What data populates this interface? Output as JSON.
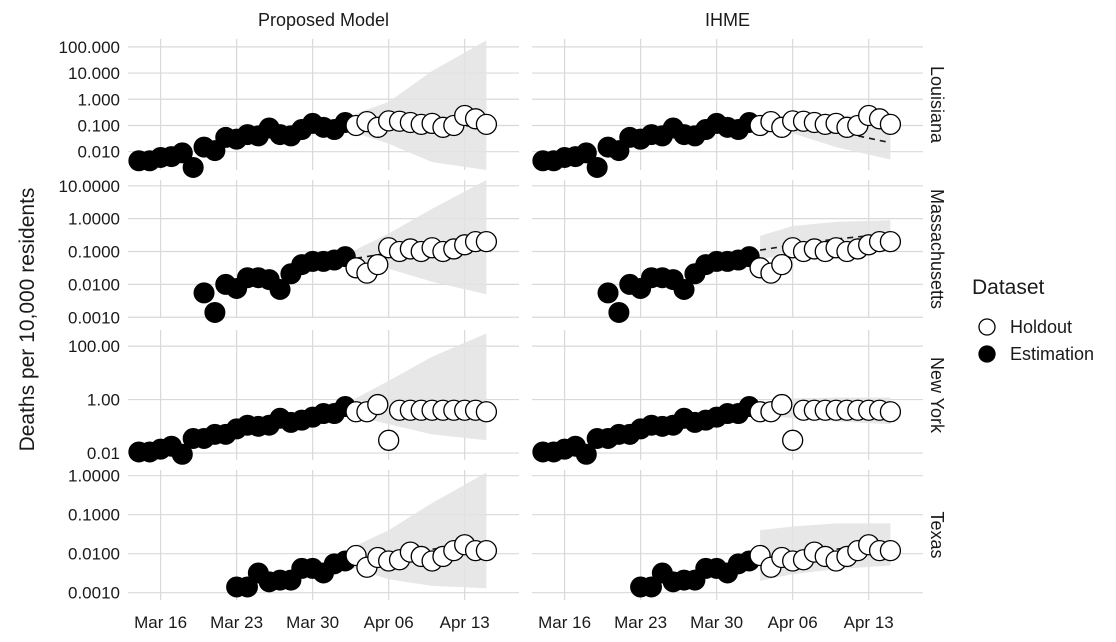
{
  "chart_data": {
    "type": "scatter",
    "ylabel": "Deaths per 10,000 residents",
    "xlabel": "",
    "x_tick_labels": [
      "Mar 16",
      "Mar 23",
      "Mar 30",
      "Apr 06",
      "Apr 13"
    ],
    "x_range": [
      "2020-03-13",
      "2020-04-18"
    ],
    "columns": [
      "Proposed Model",
      "IHME"
    ],
    "legend": {
      "title": "Dataset",
      "position": "right",
      "entries": [
        {
          "label": "Holdout",
          "marker": "open-circle"
        },
        {
          "label": "Estimation",
          "marker": "filled-circle"
        }
      ]
    },
    "y_scale": "log10",
    "grid": true,
    "colors": {
      "points": "#000000",
      "ribbon": "#e3e3e3",
      "grid": "#d9d9d9",
      "fit_line": "#1a1a1a"
    },
    "rows": [
      {
        "state": "Louisiana",
        "y_tick_labels": [
          "100.000",
          "10.000",
          "1.000",
          "0.100",
          "0.010"
        ],
        "y_tick_values": [
          100,
          10,
          1,
          0.1,
          0.01
        ],
        "ylim": [
          0.002,
          200
        ],
        "estimation": {
          "dates": [
            "2020-03-14",
            "2020-03-15",
            "2020-03-16",
            "2020-03-17",
            "2020-03-18",
            "2020-03-19",
            "2020-03-20",
            "2020-03-21",
            "2020-03-22",
            "2020-03-23",
            "2020-03-24",
            "2020-03-25",
            "2020-03-26",
            "2020-03-27",
            "2020-03-28",
            "2020-03-29",
            "2020-03-30",
            "2020-03-31",
            "2020-04-01",
            "2020-04-02"
          ],
          "values": [
            0.0045,
            0.0045,
            0.006,
            0.0065,
            0.009,
            0.0025,
            0.015,
            0.011,
            0.035,
            0.03,
            0.045,
            0.04,
            0.08,
            0.045,
            0.04,
            0.07,
            0.12,
            0.085,
            0.07,
            0.13
          ]
        },
        "holdout": {
          "dates": [
            "2020-04-03",
            "2020-04-04",
            "2020-04-05",
            "2020-04-06",
            "2020-04-07",
            "2020-04-08",
            "2020-04-09",
            "2020-04-10",
            "2020-04-11",
            "2020-04-12",
            "2020-04-13",
            "2020-04-14",
            "2020-04-15"
          ],
          "values": [
            0.1,
            0.14,
            0.085,
            0.15,
            0.145,
            0.13,
            0.11,
            0.12,
            0.085,
            0.1,
            0.24,
            0.18,
            0.11
          ]
        },
        "models": [
          {
            "name": "Proposed Model",
            "fit": {
              "dates": [
                "2020-04-02",
                "2020-04-06",
                "2020-04-10",
                "2020-04-15"
              ],
              "values": [
                0.12,
                0.12,
                0.11,
                0.09
              ]
            },
            "ribbon": {
              "dates": [
                "2020-04-02",
                "2020-04-06",
                "2020-04-10",
                "2020-04-15"
              ],
              "lower": [
                0.07,
                0.02,
                0.004,
                0.002
              ],
              "upper": [
                0.2,
                0.8,
                12,
                180
              ]
            }
          },
          {
            "name": "IHME",
            "fit": {
              "dates": [
                "2020-04-02",
                "2020-04-06",
                "2020-04-10",
                "2020-04-15"
              ],
              "values": [
                0.13,
                0.1,
                0.06,
                0.022
              ]
            },
            "ribbon": {
              "dates": [
                "2020-04-02",
                "2020-04-06",
                "2020-04-10",
                "2020-04-15"
              ],
              "lower": [
                0.1,
                0.05,
                0.015,
                0.005
              ],
              "upper": [
                0.16,
                0.2,
                0.22,
                0.3
              ]
            }
          }
        ]
      },
      {
        "state": "Massachusetts",
        "y_tick_labels": [
          "10.0000",
          "1.0000",
          "0.1000",
          "0.0100",
          "0.0010"
        ],
        "y_tick_values": [
          10,
          1,
          0.1,
          0.01,
          0.001
        ],
        "ylim": [
          0.00095,
          15
        ],
        "estimation": {
          "dates": [
            "2020-03-20",
            "2020-03-21",
            "2020-03-22",
            "2020-03-23",
            "2020-03-24",
            "2020-03-25",
            "2020-03-26",
            "2020-03-27",
            "2020-03-28",
            "2020-03-29",
            "2020-03-30",
            "2020-03-31",
            "2020-04-01",
            "2020-04-02"
          ],
          "values": [
            0.0055,
            0.0014,
            0.01,
            0.0075,
            0.016,
            0.016,
            0.014,
            0.007,
            0.021,
            0.04,
            0.05,
            0.05,
            0.055,
            0.07
          ]
        },
        "holdout": {
          "dates": [
            "2020-04-03",
            "2020-04-04",
            "2020-04-05",
            "2020-04-06",
            "2020-04-07",
            "2020-04-08",
            "2020-04-09",
            "2020-04-10",
            "2020-04-11",
            "2020-04-12",
            "2020-04-13",
            "2020-04-14",
            "2020-04-15"
          ],
          "values": [
            0.032,
            0.022,
            0.04,
            0.13,
            0.1,
            0.12,
            0.1,
            0.13,
            0.1,
            0.12,
            0.16,
            0.2,
            0.2
          ]
        },
        "models": [
          {
            "name": "Proposed Model",
            "fit": {
              "dates": [
                "2020-04-02",
                "2020-04-06",
                "2020-04-10",
                "2020-04-15"
              ],
              "values": [
                0.055,
                0.09,
                0.14,
                0.22
              ]
            },
            "ribbon": {
              "dates": [
                "2020-04-02",
                "2020-04-06",
                "2020-04-10",
                "2020-04-15"
              ],
              "lower": [
                0.04,
                0.03,
                0.012,
                0.005
              ],
              "upper": [
                0.08,
                0.35,
                2,
                15
              ]
            }
          },
          {
            "name": "IHME",
            "fit": {
              "dates": [
                "2020-04-03",
                "2020-04-06",
                "2020-04-10",
                "2020-04-15"
              ],
              "values": [
                0.11,
                0.16,
                0.24,
                0.35
              ]
            },
            "ribbon": {
              "dates": [
                "2020-04-03",
                "2020-04-06",
                "2020-04-10",
                "2020-04-15"
              ],
              "lower": [
                0.06,
                0.08,
                0.1,
                0.15
              ],
              "upper": [
                0.3,
                0.6,
                0.8,
                0.9
              ]
            }
          }
        ]
      },
      {
        "state": "New York",
        "y_tick_labels": [
          "100.00",
          "1.00",
          "0.01"
        ],
        "y_tick_values": [
          100,
          1,
          0.01
        ],
        "ylim": [
          0.0055,
          400
        ],
        "estimation": {
          "dates": [
            "2020-03-14",
            "2020-03-15",
            "2020-03-16",
            "2020-03-17",
            "2020-03-18",
            "2020-03-19",
            "2020-03-20",
            "2020-03-21",
            "2020-03-22",
            "2020-03-23",
            "2020-03-24",
            "2020-03-25",
            "2020-03-26",
            "2020-03-27",
            "2020-03-28",
            "2020-03-29",
            "2020-03-30",
            "2020-03-31",
            "2020-04-01",
            "2020-04-02"
          ],
          "values": [
            0.011,
            0.011,
            0.014,
            0.018,
            0.009,
            0.035,
            0.035,
            0.05,
            0.05,
            0.08,
            0.11,
            0.1,
            0.11,
            0.2,
            0.14,
            0.17,
            0.22,
            0.3,
            0.3,
            0.55
          ]
        },
        "holdout": {
          "dates": [
            "2020-04-03",
            "2020-04-04",
            "2020-04-05",
            "2020-04-06",
            "2020-04-07",
            "2020-04-08",
            "2020-04-09",
            "2020-04-10",
            "2020-04-11",
            "2020-04-12",
            "2020-04-13",
            "2020-04-14",
            "2020-04-15"
          ],
          "values": [
            0.35,
            0.35,
            0.65,
            0.03,
            0.4,
            0.4,
            0.4,
            0.4,
            0.4,
            0.4,
            0.4,
            0.4,
            0.35
          ]
        },
        "models": [
          {
            "name": "Proposed Model",
            "fit": {
              "dates": [
                "2020-04-02",
                "2020-04-06",
                "2020-04-10",
                "2020-04-15"
              ],
              "values": [
                0.45,
                0.42,
                0.4,
                0.38
              ]
            },
            "ribbon": {
              "dates": [
                "2020-04-02",
                "2020-04-06",
                "2020-04-10",
                "2020-04-15"
              ],
              "lower": [
                0.3,
                0.12,
                0.05,
                0.03
              ],
              "upper": [
                0.7,
                5,
                40,
                300
              ]
            }
          },
          {
            "name": "IHME",
            "fit": {
              "dates": [
                "2020-04-02",
                "2020-04-06",
                "2020-04-10",
                "2020-04-15"
              ],
              "values": [
                0.45,
                0.42,
                0.4,
                0.38
              ]
            },
            "ribbon": {
              "dates": [
                "2020-04-02",
                "2020-04-06",
                "2020-04-10",
                "2020-04-15"
              ],
              "lower": [
                0.3,
                0.2,
                0.15,
                0.12
              ],
              "upper": [
                0.7,
                1.1,
                1.2,
                1.2
              ]
            }
          }
        ]
      },
      {
        "state": "Texas",
        "y_tick_labels": [
          "1.0000",
          "0.1000",
          "0.0100",
          "0.0010"
        ],
        "y_tick_values": [
          1,
          0.1,
          0.01,
          0.001
        ],
        "ylim": [
          0.00065,
          1.4
        ],
        "estimation": {
          "dates": [
            "2020-03-23",
            "2020-03-24",
            "2020-03-25",
            "2020-03-26",
            "2020-03-27",
            "2020-03-28",
            "2020-03-29",
            "2020-03-30",
            "2020-03-31",
            "2020-04-01",
            "2020-04-02"
          ],
          "values": [
            0.0014,
            0.0014,
            0.0032,
            0.0019,
            0.0021,
            0.0021,
            0.0042,
            0.0042,
            0.0032,
            0.0055,
            0.0065
          ]
        },
        "holdout": {
          "dates": [
            "2020-04-03",
            "2020-04-04",
            "2020-04-05",
            "2020-04-06",
            "2020-04-07",
            "2020-04-08",
            "2020-04-09",
            "2020-04-10",
            "2020-04-11",
            "2020-04-12",
            "2020-04-13",
            "2020-04-14",
            "2020-04-15"
          ],
          "values": [
            0.009,
            0.0045,
            0.008,
            0.0065,
            0.007,
            0.011,
            0.0085,
            0.0065,
            0.0085,
            0.012,
            0.017,
            0.012,
            0.012
          ]
        },
        "models": [
          {
            "name": "Proposed Model",
            "fit": {
              "dates": [
                "2020-04-02",
                "2020-04-06",
                "2020-04-10",
                "2020-04-15"
              ],
              "values": [
                0.007,
                0.009,
                0.013,
                0.02
              ]
            },
            "ribbon": {
              "dates": [
                "2020-04-02",
                "2020-04-06",
                "2020-04-10",
                "2020-04-15"
              ],
              "lower": [
                0.005,
                0.0022,
                0.0015,
                0.0013
              ],
              "upper": [
                0.012,
                0.04,
                0.2,
                1.2
              ]
            }
          },
          {
            "name": "IHME",
            "fit": {
              "dates": [
                "2020-04-03",
                "2020-04-06",
                "2020-04-10",
                "2020-04-15"
              ],
              "values": [
                0.008,
                0.009,
                0.013,
                0.02
              ]
            },
            "ribbon": {
              "dates": [
                "2020-04-03",
                "2020-04-06",
                "2020-04-10",
                "2020-04-15"
              ],
              "lower": [
                0.002,
                0.003,
                0.004,
                0.005
              ],
              "upper": [
                0.04,
                0.05,
                0.06,
                0.06
              ]
            }
          }
        ]
      }
    ]
  }
}
